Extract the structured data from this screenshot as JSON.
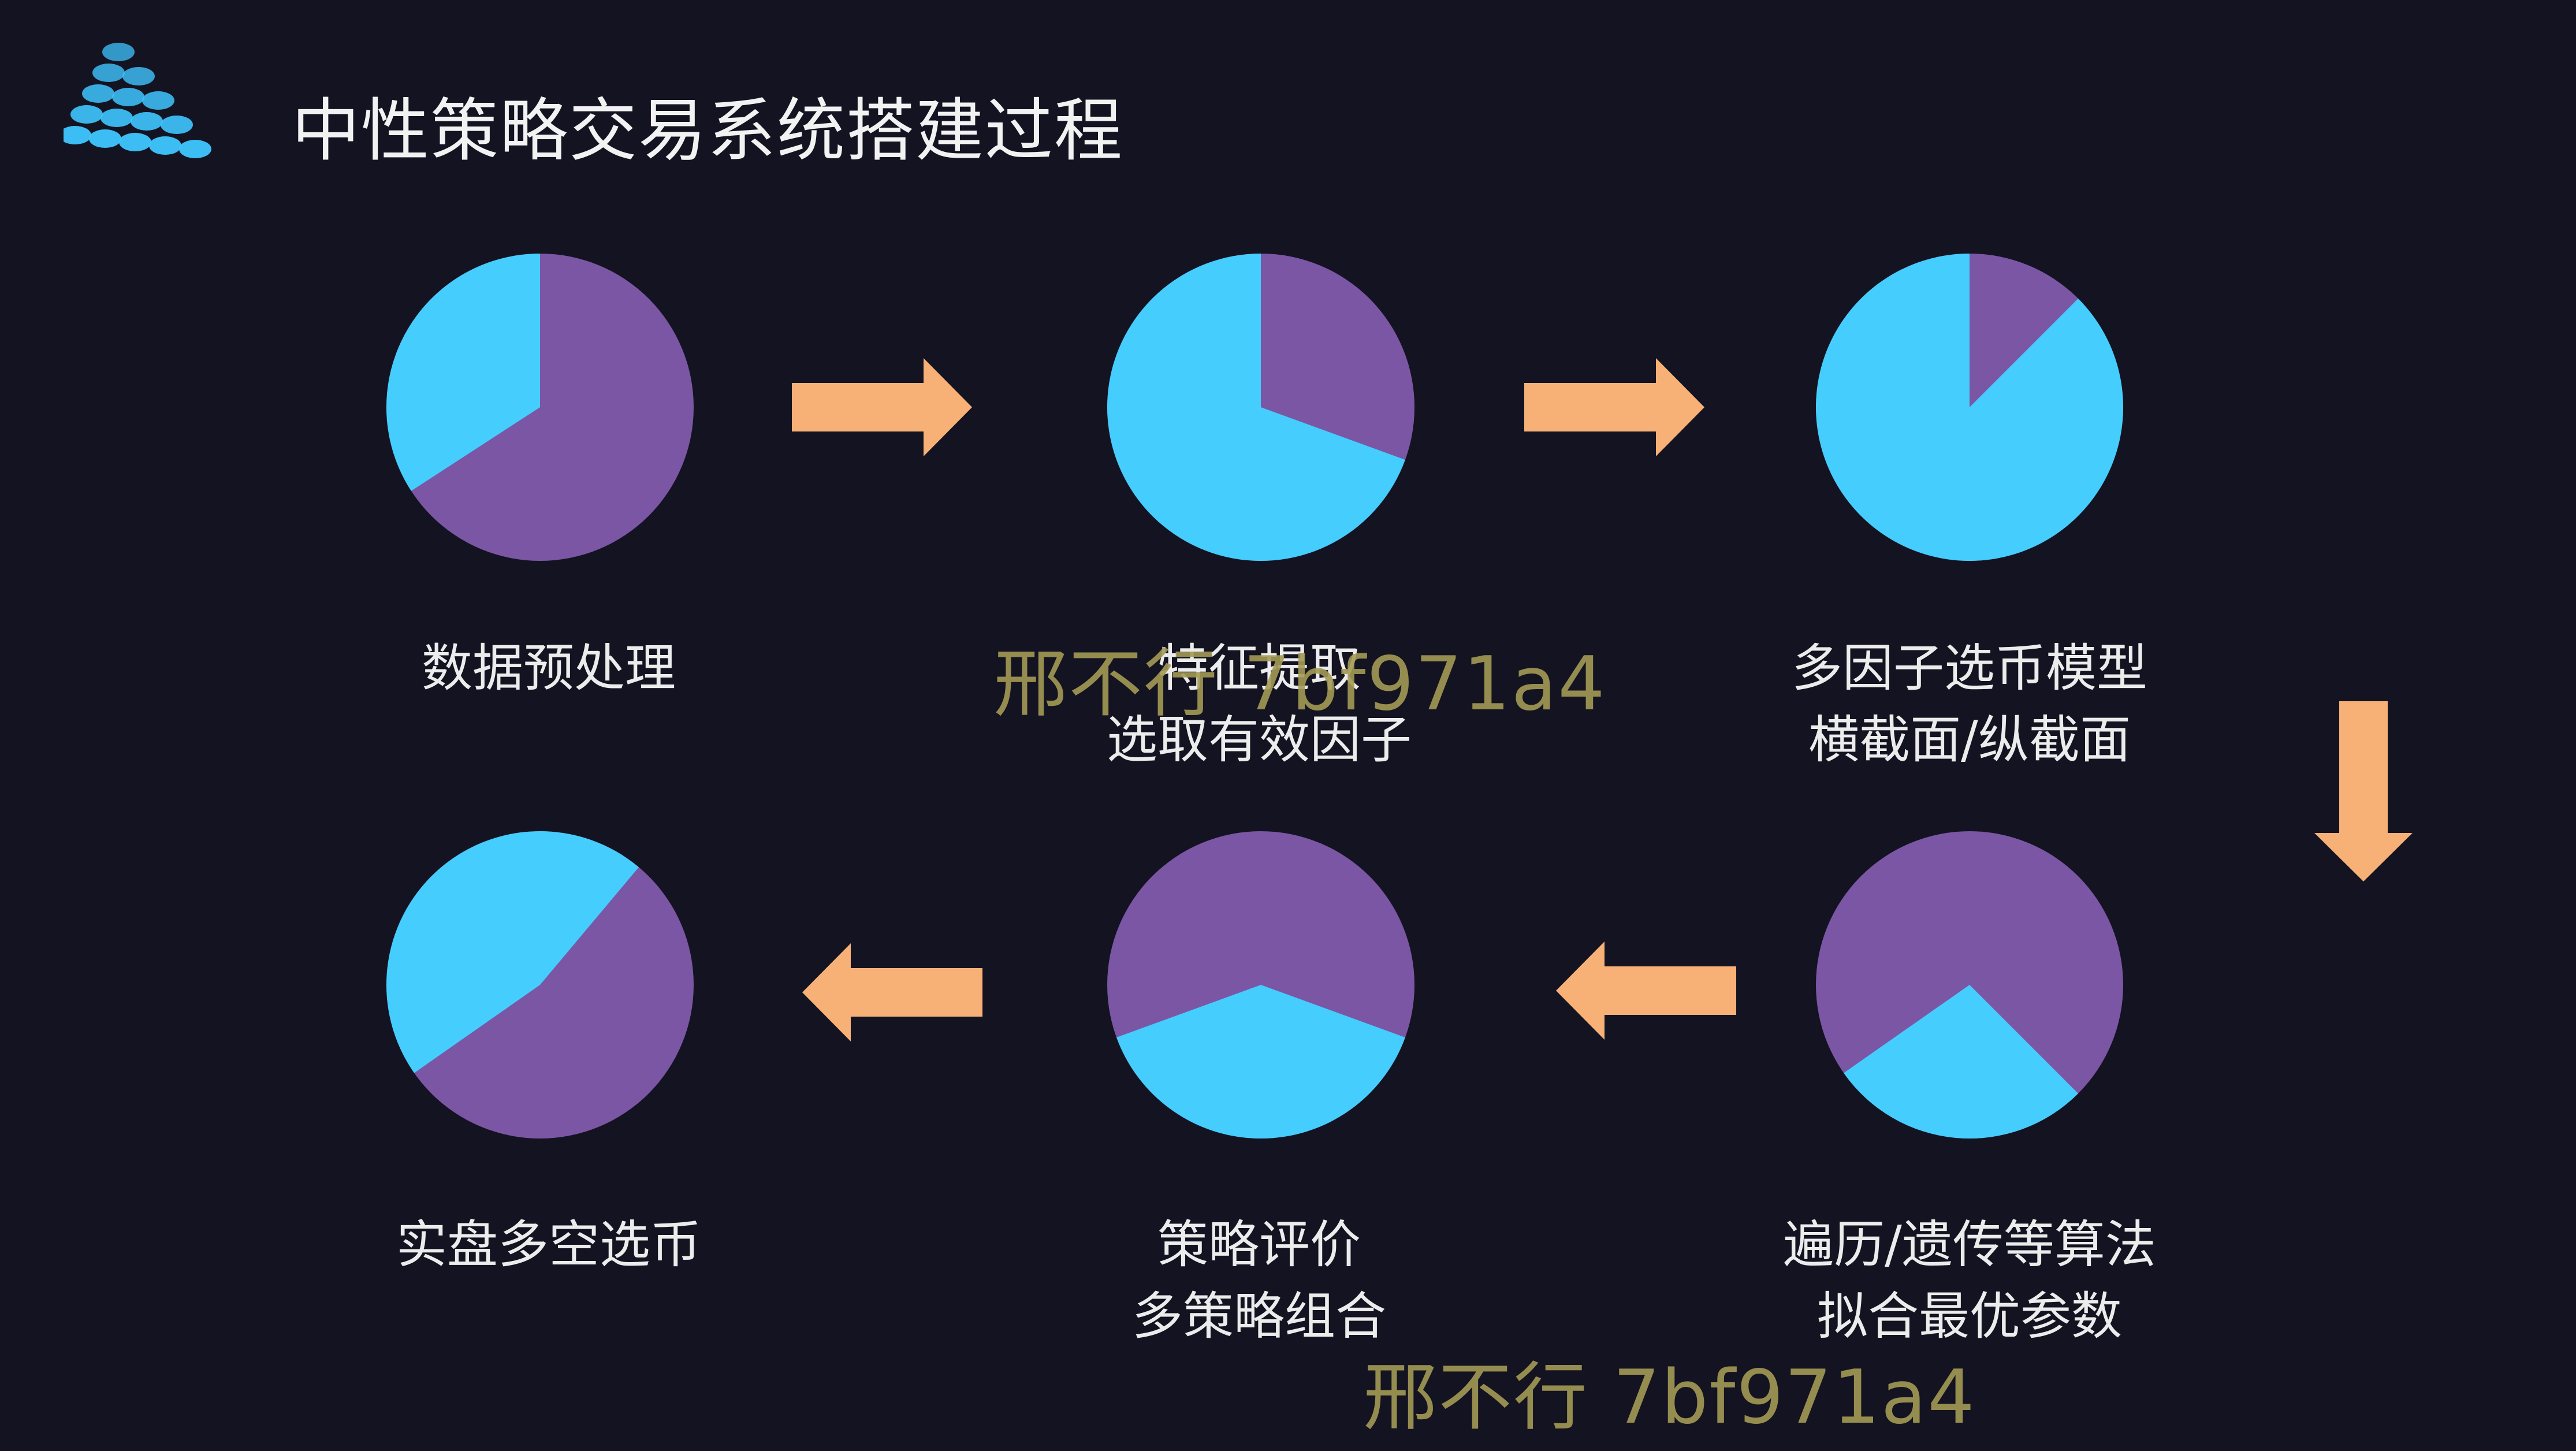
{
  "page": {
    "title": "中性策略交易系统搭建过程"
  },
  "colors": {
    "background": "#141321",
    "pie_primary": "#7b56a4",
    "pie_secondary": "#45cdfd",
    "arrow": "#f7b176",
    "logo": "#3ec6ff",
    "watermark": "#a49a55"
  },
  "steps": [
    {
      "id": "step1",
      "lines": [
        "数据预处理",
        ""
      ],
      "pie": {
        "start_deg": 237,
        "end_deg": 360
      }
    },
    {
      "id": "step2",
      "lines": [
        "特征提取",
        "选取有效因子"
      ],
      "pie": {
        "start_deg": 110,
        "end_deg": 360
      }
    },
    {
      "id": "step3",
      "lines": [
        "多因子选币模型",
        "横截面/纵截面"
      ],
      "pie": {
        "start_deg": 45,
        "end_deg": 360
      }
    },
    {
      "id": "step4",
      "lines": [
        "遍历/遗传等算法",
        "拟合最优参数"
      ],
      "pie": {
        "start_deg": 135,
        "end_deg": 235
      }
    },
    {
      "id": "step5",
      "lines": [
        "策略评价",
        "多策略组合"
      ],
      "pie": {
        "start_deg": 110,
        "end_deg": 250
      }
    },
    {
      "id": "step6",
      "lines": [
        "实盘多空选币",
        ""
      ],
      "pie": {
        "start_deg": 235,
        "end_deg": 400
      }
    }
  ],
  "arrows": [
    {
      "from": "step1",
      "to": "step2",
      "direction": "right"
    },
    {
      "from": "step2",
      "to": "step3",
      "direction": "right"
    },
    {
      "from": "step3",
      "to": "step4",
      "direction": "down"
    },
    {
      "from": "step4",
      "to": "step5",
      "direction": "left"
    },
    {
      "from": "step5",
      "to": "step6",
      "direction": "left"
    }
  ],
  "watermarks": [
    "邢不行 7bf971a4",
    "邢不行 7bf971a4"
  ]
}
